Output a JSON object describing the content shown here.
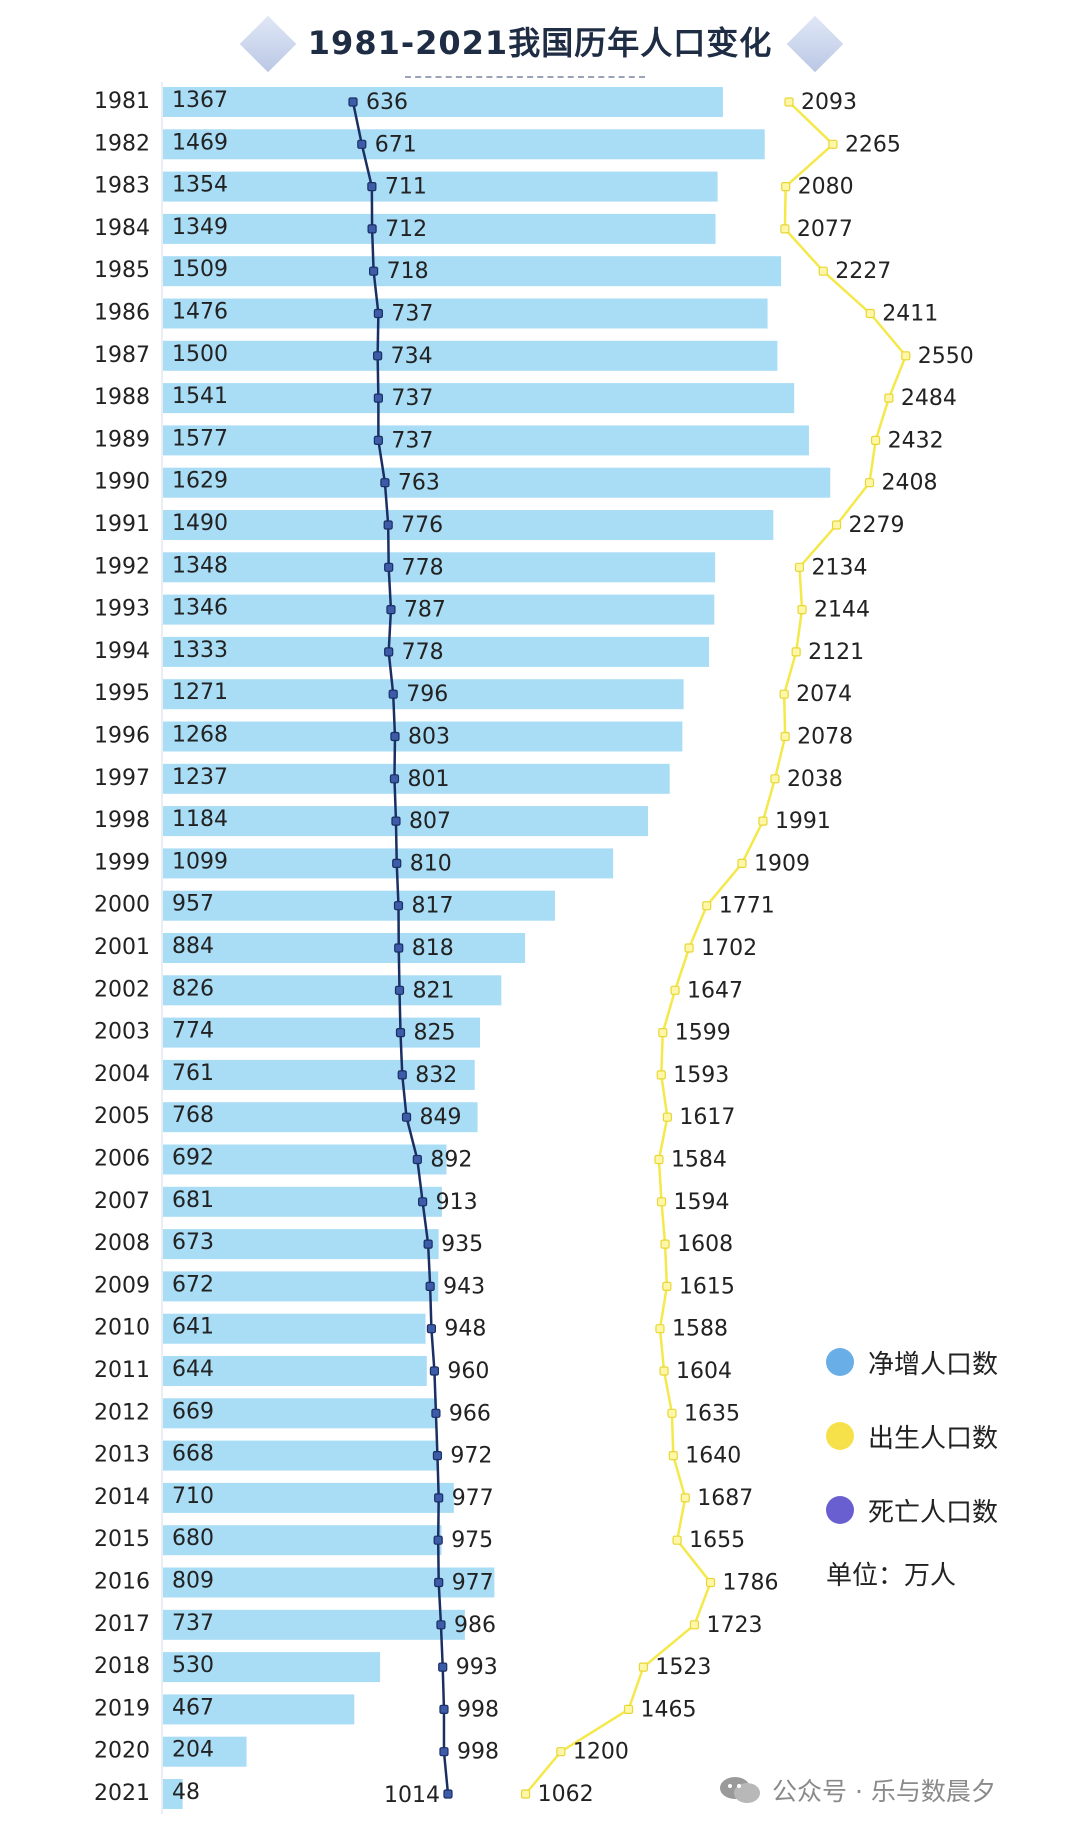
{
  "title": "1981-2021我国历年人口变化",
  "legend": {
    "items": [
      {
        "label": "净增人口数",
        "color": "#6aaee8"
      },
      {
        "label": "出生人口数",
        "color": "#f7e14a"
      },
      {
        "label": "死亡人口数",
        "color": "#6a5fd0"
      }
    ],
    "unit": "单位：万人"
  },
  "watermark": "公众号 · 乐与数晨夕",
  "colors": {
    "bar": "#a9dcf5",
    "death_line": "#1b2f63",
    "birth_line": "#f5e84a",
    "text": "#222222"
  },
  "chart_data": {
    "type": "bar+line",
    "orientation": "horizontal",
    "title": "1981-2021我国历年人口变化",
    "unit": "万人",
    "years": [
      "1981",
      "1982",
      "1983",
      "1984",
      "1985",
      "1986",
      "1987",
      "1988",
      "1989",
      "1990",
      "1991",
      "1992",
      "1993",
      "1994",
      "1995",
      "1996",
      "1997",
      "1998",
      "1999",
      "2000",
      "2001",
      "2002",
      "2003",
      "2004",
      "2005",
      "2006",
      "2007",
      "2008",
      "2009",
      "2010",
      "2011",
      "2012",
      "2013",
      "2014",
      "2015",
      "2016",
      "2017",
      "2018",
      "2019",
      "2020",
      "2021"
    ],
    "series": [
      {
        "name": "净增人口数",
        "type": "bar",
        "values": [
          1367,
          1469,
          1354,
          1349,
          1509,
          1476,
          1500,
          1541,
          1577,
          1629,
          1490,
          1348,
          1346,
          1333,
          1271,
          1268,
          1237,
          1184,
          1099,
          957,
          884,
          826,
          774,
          761,
          768,
          692,
          681,
          673,
          672,
          641,
          644,
          669,
          668,
          710,
          680,
          809,
          737,
          530,
          467,
          204,
          48
        ]
      },
      {
        "name": "出生人口数",
        "type": "line",
        "values": [
          2093,
          2265,
          2080,
          2077,
          2227,
          2411,
          2550,
          2484,
          2432,
          2408,
          2279,
          2134,
          2144,
          2121,
          2074,
          2078,
          2038,
          1991,
          1909,
          1771,
          1702,
          1647,
          1599,
          1593,
          1617,
          1584,
          1594,
          1608,
          1615,
          1588,
          1604,
          1635,
          1640,
          1687,
          1655,
          1786,
          1723,
          1523,
          1465,
          1200,
          1062
        ]
      },
      {
        "name": "死亡人口数",
        "type": "line",
        "values": [
          636,
          671,
          711,
          712,
          718,
          737,
          734,
          737,
          737,
          763,
          776,
          778,
          787,
          778,
          796,
          803,
          801,
          807,
          810,
          817,
          818,
          821,
          825,
          832,
          849,
          892,
          913,
          935,
          943,
          948,
          960,
          966,
          972,
          977,
          975,
          977,
          986,
          993,
          998,
          998,
          1014
        ]
      }
    ]
  }
}
